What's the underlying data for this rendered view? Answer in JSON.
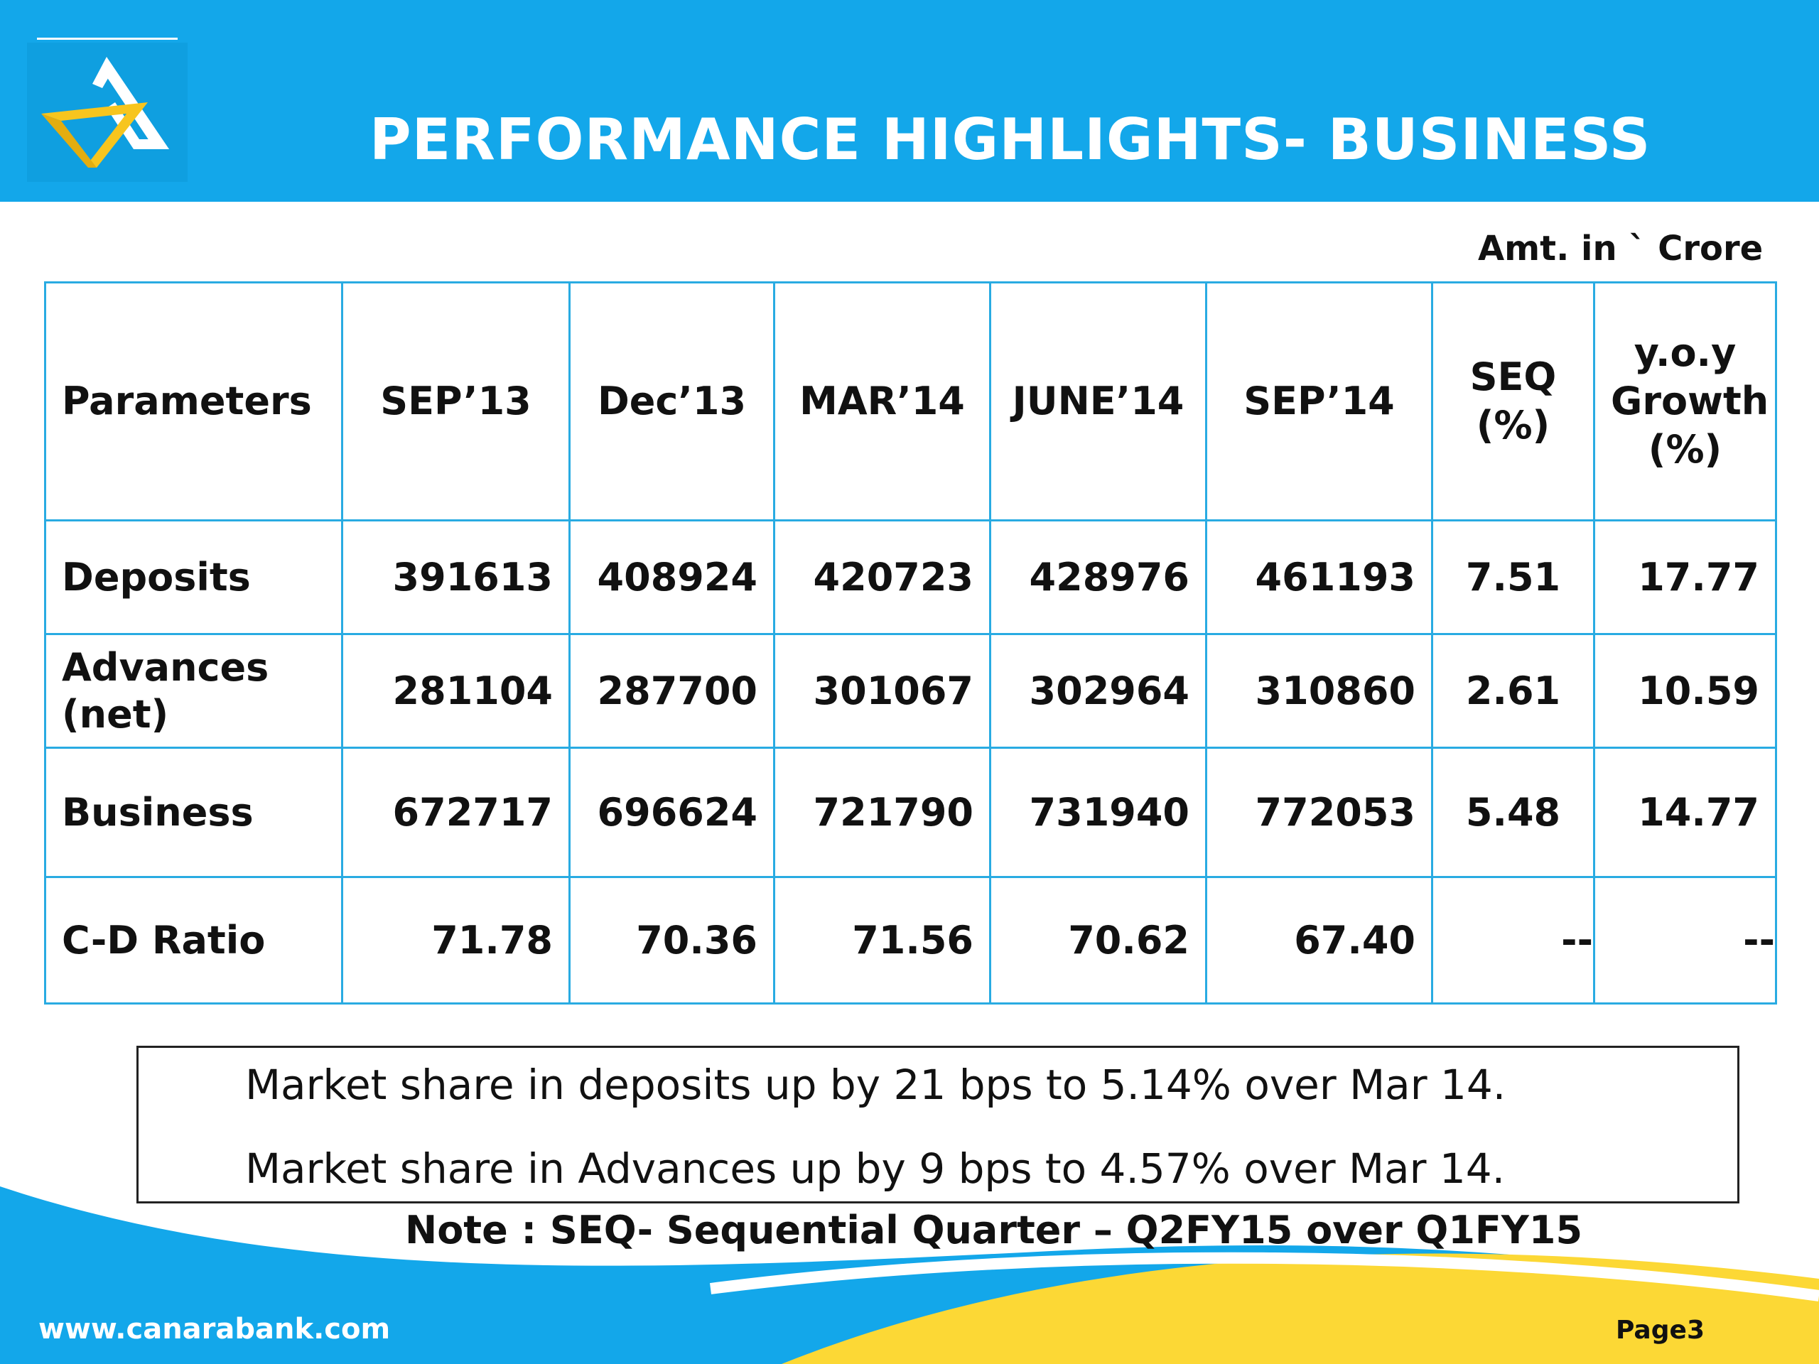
{
  "header": {
    "title": "PERFORMANCE  HIGHLIGHTS- BUSINESS",
    "logo": "canara-bank-logo"
  },
  "unit_note": "Amt. in ` Crore",
  "table": {
    "headers": {
      "parameters": "Parameters",
      "sep13": "SEP’13",
      "dec13": "Dec’13",
      "mar14": "MAR’14",
      "june14": "JUNE’14",
      "sep14": "SEP’14",
      "seq": [
        "SEQ",
        "(%)"
      ],
      "yoy": [
        "y.o.y",
        "Growth",
        "(%)"
      ]
    },
    "rows": [
      {
        "param": [
          "Deposits"
        ],
        "values": [
          "391613",
          "408924",
          "420723",
          "428976",
          "461193"
        ],
        "seq": "7.51",
        "yoy": "17.77"
      },
      {
        "param": [
          "Advances",
          "(net)"
        ],
        "values": [
          "281104",
          "287700",
          "301067",
          "302964",
          "310860"
        ],
        "seq": "2.61",
        "yoy": "10.59"
      },
      {
        "param": [
          "Business"
        ],
        "values": [
          "672717",
          "696624",
          "721790",
          "731940",
          "772053"
        ],
        "seq": "5.48",
        "yoy": "14.77"
      },
      {
        "param": [
          "C-D Ratio"
        ],
        "values": [
          "71.78",
          "70.36",
          "71.56",
          "70.62",
          "67.40"
        ],
        "seq": "--",
        "yoy": "--"
      }
    ]
  },
  "notes": {
    "line1": "Market share in deposits up by 21 bps to 5.14% over Mar 14.",
    "line2": "Market share in Advances up by 9 bps to 4.57% over Mar 14."
  },
  "footnote": "Note : SEQ- Sequential Quarter – Q2FY15 over Q1FY15",
  "footer": {
    "website": "www.canarabank.com",
    "page_label": "Page",
    "page_number": "3"
  },
  "colors": {
    "header_blue": "#13a7ea",
    "table_border": "#29abe2",
    "wave_yellow": "#fcd835",
    "wave_blue": "#13a7ea"
  }
}
